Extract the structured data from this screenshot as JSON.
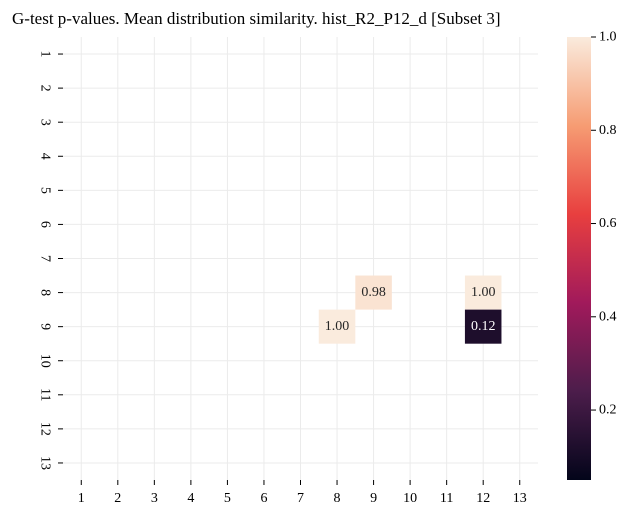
{
  "chart_data": {
    "type": "heatmap",
    "title": "G-test p-values. Mean distribution similarity. hist_R2_P12_d [Subset 3]",
    "x_categories": [
      "1",
      "2",
      "3",
      "4",
      "5",
      "6",
      "7",
      "8",
      "9",
      "10",
      "11",
      "12",
      "13"
    ],
    "y_categories": [
      "1",
      "2",
      "3",
      "4",
      "5",
      "6",
      "7",
      "8",
      "9",
      "10",
      "11",
      "12",
      "13"
    ],
    "cells": [
      {
        "row": "8",
        "col": "9",
        "value": 0.98,
        "label": "0.98"
      },
      {
        "row": "8",
        "col": "12",
        "value": 1.0,
        "label": "1.00"
      },
      {
        "row": "9",
        "col": "8",
        "value": 1.0,
        "label": "1.00"
      },
      {
        "row": "9",
        "col": "12",
        "value": 0.12,
        "label": "0.12"
      }
    ],
    "colorbar": {
      "colormap": "rocket",
      "vmin": 0.05,
      "vmax": 1.0,
      "ticks": [
        0.2,
        0.4,
        0.6,
        0.8,
        1.0
      ],
      "tick_labels": [
        "0.2",
        "0.4",
        "0.6",
        "0.8",
        "1.0"
      ],
      "colors": [
        "#03051a",
        "#4c1d4b",
        "#a11a5b",
        "#e83f3f",
        "#f69c73",
        "#faebdd"
      ]
    },
    "grid": true,
    "gridColor": "#ebebeb"
  }
}
